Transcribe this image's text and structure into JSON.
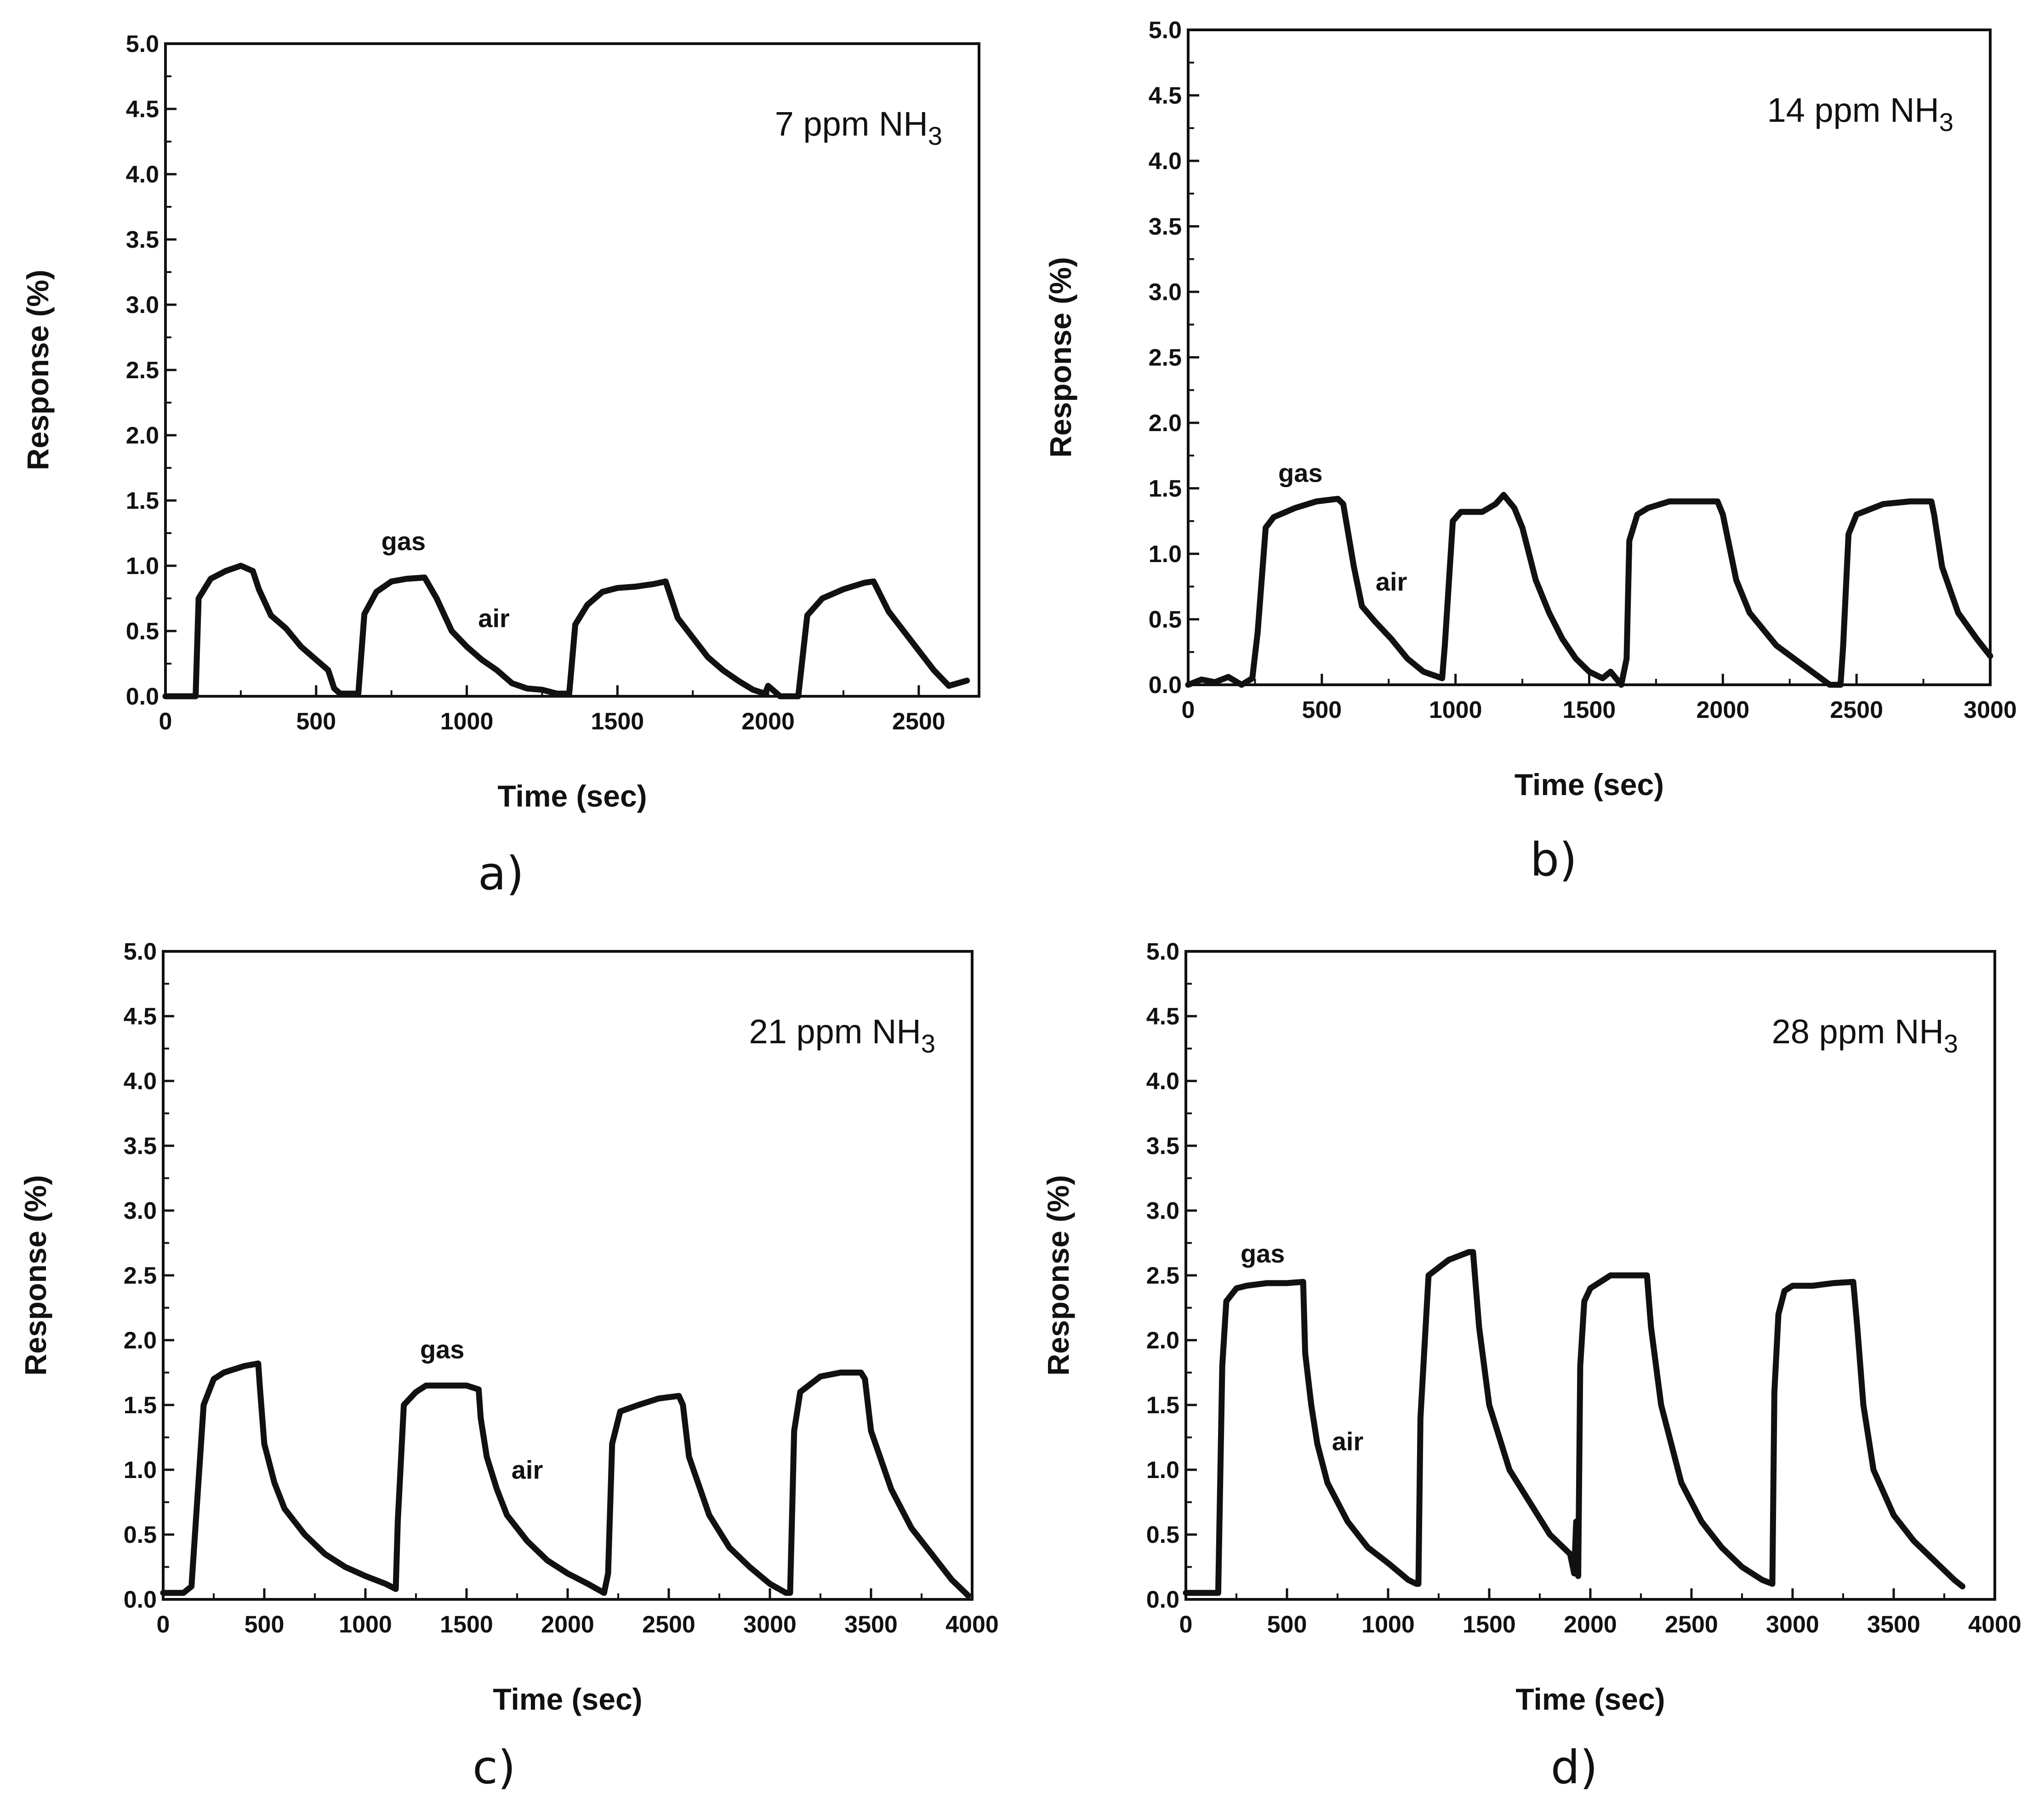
{
  "chart_data": [
    {
      "type": "line",
      "panel_label": "a)",
      "title": "7 ppm NH3",
      "title_parts": {
        "main": "7 ppm NH",
        "sub": "3"
      },
      "xlabel": "Time (sec)",
      "ylabel": "Response (%)",
      "xlim": [
        0,
        2700
      ],
      "ylim": [
        0,
        5
      ],
      "xticks": [
        0,
        500,
        1000,
        1500,
        2000,
        2500
      ],
      "yticks": [
        0.0,
        0.5,
        1.0,
        1.5,
        2.0,
        2.5,
        3.0,
        3.5,
        4.0,
        4.5,
        5.0
      ],
      "annotations": [
        {
          "text": "gas",
          "x": 790,
          "y": 1.12
        },
        {
          "text": "air",
          "x": 1090,
          "y": 0.53
        }
      ],
      "series": [
        {
          "name": "7 ppm NH3",
          "x": [
            0,
            100,
            110,
            150,
            200,
            250,
            290,
            310,
            350,
            400,
            450,
            500,
            540,
            560,
            580,
            600,
            640,
            660,
            700,
            750,
            800,
            860,
            900,
            950,
            1000,
            1050,
            1100,
            1150,
            1200,
            1250,
            1300,
            1340,
            1360,
            1400,
            1450,
            1500,
            1560,
            1620,
            1660,
            1700,
            1750,
            1800,
            1850,
            1900,
            1950,
            1990,
            2000,
            2040,
            2100,
            2130,
            2180,
            2250,
            2320,
            2350,
            2400,
            2450,
            2500,
            2550,
            2600,
            2660
          ],
          "y": [
            0.0,
            0.0,
            0.75,
            0.9,
            0.96,
            1.0,
            0.96,
            0.82,
            0.62,
            0.52,
            0.38,
            0.28,
            0.2,
            0.06,
            0.02,
            0.02,
            0.02,
            0.63,
            0.8,
            0.88,
            0.9,
            0.91,
            0.75,
            0.5,
            0.38,
            0.28,
            0.2,
            0.1,
            0.06,
            0.05,
            0.02,
            0.02,
            0.55,
            0.7,
            0.8,
            0.83,
            0.84,
            0.86,
            0.88,
            0.6,
            0.45,
            0.3,
            0.2,
            0.12,
            0.05,
            0.02,
            0.08,
            0.0,
            0.0,
            0.62,
            0.75,
            0.82,
            0.87,
            0.88,
            0.65,
            0.5,
            0.35,
            0.2,
            0.08,
            0.12
          ]
        }
      ]
    },
    {
      "type": "line",
      "panel_label": "b)",
      "title": "14 ppm NH3",
      "title_parts": {
        "main": "14 ppm NH",
        "sub": "3"
      },
      "xlabel": "Time (sec)",
      "ylabel": "Response (%)",
      "xlim": [
        0,
        3000
      ],
      "ylim": [
        0,
        5
      ],
      "xticks": [
        0,
        500,
        1000,
        1500,
        2000,
        2500,
        3000
      ],
      "yticks": [
        0.0,
        0.5,
        1.0,
        1.5,
        2.0,
        2.5,
        3.0,
        3.5,
        4.0,
        4.5,
        5.0
      ],
      "annotations": [
        {
          "text": "gas",
          "x": 420,
          "y": 1.55
        },
        {
          "text": "air",
          "x": 760,
          "y": 0.72
        }
      ],
      "series": [
        {
          "name": "14 ppm NH3",
          "x": [
            0,
            50,
            100,
            150,
            200,
            240,
            260,
            290,
            320,
            400,
            480,
            560,
            580,
            620,
            650,
            700,
            760,
            820,
            880,
            950,
            960,
            990,
            1020,
            1100,
            1150,
            1180,
            1220,
            1250,
            1300,
            1350,
            1400,
            1450,
            1500,
            1550,
            1580,
            1620,
            1640,
            1650,
            1680,
            1720,
            1800,
            1900,
            1980,
            2000,
            2050,
            2100,
            2200,
            2300,
            2400,
            2440,
            2450,
            2470,
            2500,
            2600,
            2700,
            2780,
            2790,
            2820,
            2880,
            2950,
            3000
          ],
          "y": [
            0.0,
            0.04,
            0.02,
            0.06,
            0.0,
            0.05,
            0.4,
            1.2,
            1.28,
            1.35,
            1.4,
            1.42,
            1.38,
            0.9,
            0.6,
            0.48,
            0.35,
            0.2,
            0.1,
            0.05,
            0.3,
            1.25,
            1.32,
            1.32,
            1.38,
            1.45,
            1.35,
            1.2,
            0.8,
            0.55,
            0.35,
            0.2,
            0.1,
            0.05,
            0.1,
            0.0,
            0.2,
            1.1,
            1.3,
            1.35,
            1.4,
            1.4,
            1.4,
            1.3,
            0.8,
            0.55,
            0.3,
            0.15,
            0.0,
            0.0,
            0.3,
            1.15,
            1.3,
            1.38,
            1.4,
            1.4,
            1.3,
            0.9,
            0.55,
            0.35,
            0.22
          ]
        }
      ]
    },
    {
      "type": "line",
      "panel_label": "c)",
      "title": "21 ppm NH3",
      "title_parts": {
        "main": "21 ppm NH",
        "sub": "3"
      },
      "xlabel": "Time (sec)",
      "ylabel": "Response (%)",
      "xlim": [
        0,
        4000
      ],
      "ylim": [
        0,
        5
      ],
      "xticks": [
        0,
        500,
        1000,
        1500,
        2000,
        2500,
        3000,
        3500,
        4000
      ],
      "yticks": [
        0.0,
        0.5,
        1.0,
        1.5,
        2.0,
        2.5,
        3.0,
        3.5,
        4.0,
        4.5,
        5.0
      ],
      "annotations": [
        {
          "text": "gas",
          "x": 1380,
          "y": 1.86
        },
        {
          "text": "air",
          "x": 1800,
          "y": 0.93
        }
      ],
      "series": [
        {
          "name": "21 ppm NH3",
          "x": [
            0,
            100,
            140,
            170,
            200,
            250,
            300,
            400,
            470,
            480,
            500,
            550,
            600,
            700,
            800,
            900,
            1000,
            1100,
            1150,
            1160,
            1190,
            1250,
            1300,
            1400,
            1500,
            1560,
            1570,
            1600,
            1650,
            1700,
            1800,
            1900,
            2000,
            2100,
            2180,
            2200,
            2220,
            2260,
            2350,
            2450,
            2550,
            2570,
            2600,
            2700,
            2800,
            2900,
            3000,
            3080,
            3100,
            3120,
            3150,
            3250,
            3350,
            3450,
            3470,
            3500,
            3600,
            3700,
            3800,
            3900,
            3980
          ],
          "y": [
            0.05,
            0.05,
            0.1,
            0.8,
            1.5,
            1.7,
            1.75,
            1.8,
            1.82,
            1.6,
            1.2,
            0.9,
            0.7,
            0.5,
            0.35,
            0.25,
            0.18,
            0.12,
            0.08,
            0.6,
            1.5,
            1.6,
            1.65,
            1.65,
            1.65,
            1.62,
            1.4,
            1.1,
            0.85,
            0.65,
            0.45,
            0.3,
            0.2,
            0.12,
            0.05,
            0.2,
            1.2,
            1.45,
            1.5,
            1.55,
            1.57,
            1.5,
            1.1,
            0.65,
            0.4,
            0.25,
            0.12,
            0.05,
            0.05,
            1.3,
            1.6,
            1.72,
            1.75,
            1.75,
            1.7,
            1.3,
            0.85,
            0.55,
            0.35,
            0.15,
            0.03
          ]
        }
      ]
    },
    {
      "type": "line",
      "panel_label": "d)",
      "title": "28 ppm NH3",
      "title_parts": {
        "main": "28 ppm NH",
        "sub": "3"
      },
      "xlabel": "Time (sec)",
      "ylabel": "Response (%)",
      "xlim": [
        0,
        4000
      ],
      "ylim": [
        0,
        5
      ],
      "xticks": [
        0,
        500,
        1000,
        1500,
        2000,
        2500,
        3000,
        3500,
        4000
      ],
      "yticks": [
        0.0,
        0.5,
        1.0,
        1.5,
        2.0,
        2.5,
        3.0,
        3.5,
        4.0,
        4.5,
        5.0
      ],
      "annotations": [
        {
          "text": "gas",
          "x": 380,
          "y": 2.6
        },
        {
          "text": "air",
          "x": 800,
          "y": 1.15
        }
      ],
      "series": [
        {
          "name": "28 ppm NH3",
          "x": [
            0,
            100,
            160,
            180,
            200,
            250,
            300,
            400,
            500,
            580,
            590,
            620,
            650,
            700,
            800,
            900,
            1000,
            1100,
            1140,
            1150,
            1160,
            1200,
            1300,
            1400,
            1420,
            1450,
            1500,
            1600,
            1700,
            1800,
            1900,
            1920,
            1930,
            1940,
            1950,
            1970,
            2000,
            2100,
            2200,
            2280,
            2300,
            2350,
            2450,
            2550,
            2650,
            2750,
            2850,
            2900,
            2910,
            2930,
            2960,
            3000,
            3100,
            3200,
            3300,
            3320,
            3350,
            3400,
            3500,
            3600,
            3700,
            3800,
            3840
          ],
          "y": [
            0.05,
            0.05,
            0.05,
            1.8,
            2.3,
            2.4,
            2.42,
            2.44,
            2.44,
            2.45,
            1.9,
            1.5,
            1.2,
            0.9,
            0.6,
            0.4,
            0.28,
            0.15,
            0.12,
            0.12,
            1.4,
            2.5,
            2.62,
            2.68,
            2.68,
            2.1,
            1.5,
            1.0,
            0.75,
            0.5,
            0.35,
            0.2,
            0.6,
            0.18,
            1.8,
            2.3,
            2.4,
            2.5,
            2.5,
            2.5,
            2.1,
            1.5,
            0.9,
            0.6,
            0.4,
            0.25,
            0.15,
            0.12,
            1.6,
            2.2,
            2.38,
            2.42,
            2.42,
            2.44,
            2.45,
            2.1,
            1.5,
            1.0,
            0.65,
            0.45,
            0.3,
            0.15,
            0.1
          ]
        }
      ]
    }
  ]
}
